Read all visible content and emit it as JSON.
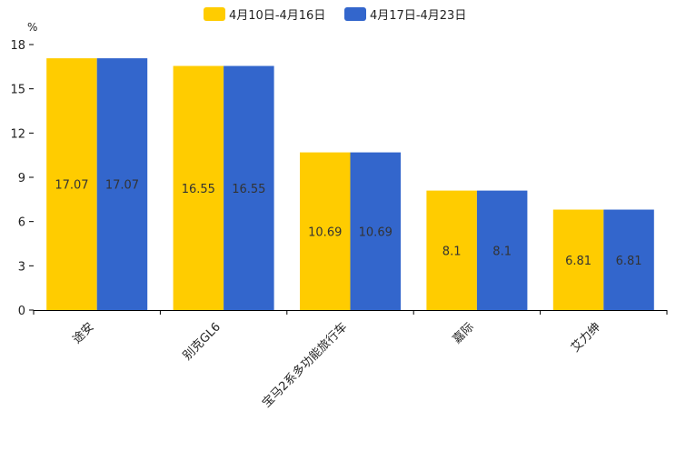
{
  "chart_data": {
    "type": "bar",
    "unit": "%",
    "categories": [
      "途安",
      "别克GL6",
      "宝马2系多功能旅行车",
      "嘉际",
      "艾力绅"
    ],
    "series": [
      {
        "name": "4月10日-4月16日",
        "color": "#FFCC00",
        "values": [
          17.07,
          16.55,
          10.69,
          8.1,
          6.81
        ],
        "labels": [
          "17.07",
          "16.55",
          "10.69",
          "8.1",
          "6.81"
        ]
      },
      {
        "name": "4月17日-4月23日",
        "color": "#3366CC",
        "values": [
          17.07,
          16.55,
          10.69,
          8.1,
          6.81
        ],
        "labels": [
          "17.07",
          "16.55",
          "10.69",
          "8.1",
          "6.81"
        ]
      }
    ],
    "ylim": [
      0,
      18
    ],
    "yticks": [
      0,
      3,
      6,
      9,
      12,
      15,
      18
    ],
    "ytick_labels": [
      "0",
      "3",
      "6",
      "9",
      "12",
      "15",
      "18"
    ],
    "legend_position": "top-center",
    "grid": false
  }
}
